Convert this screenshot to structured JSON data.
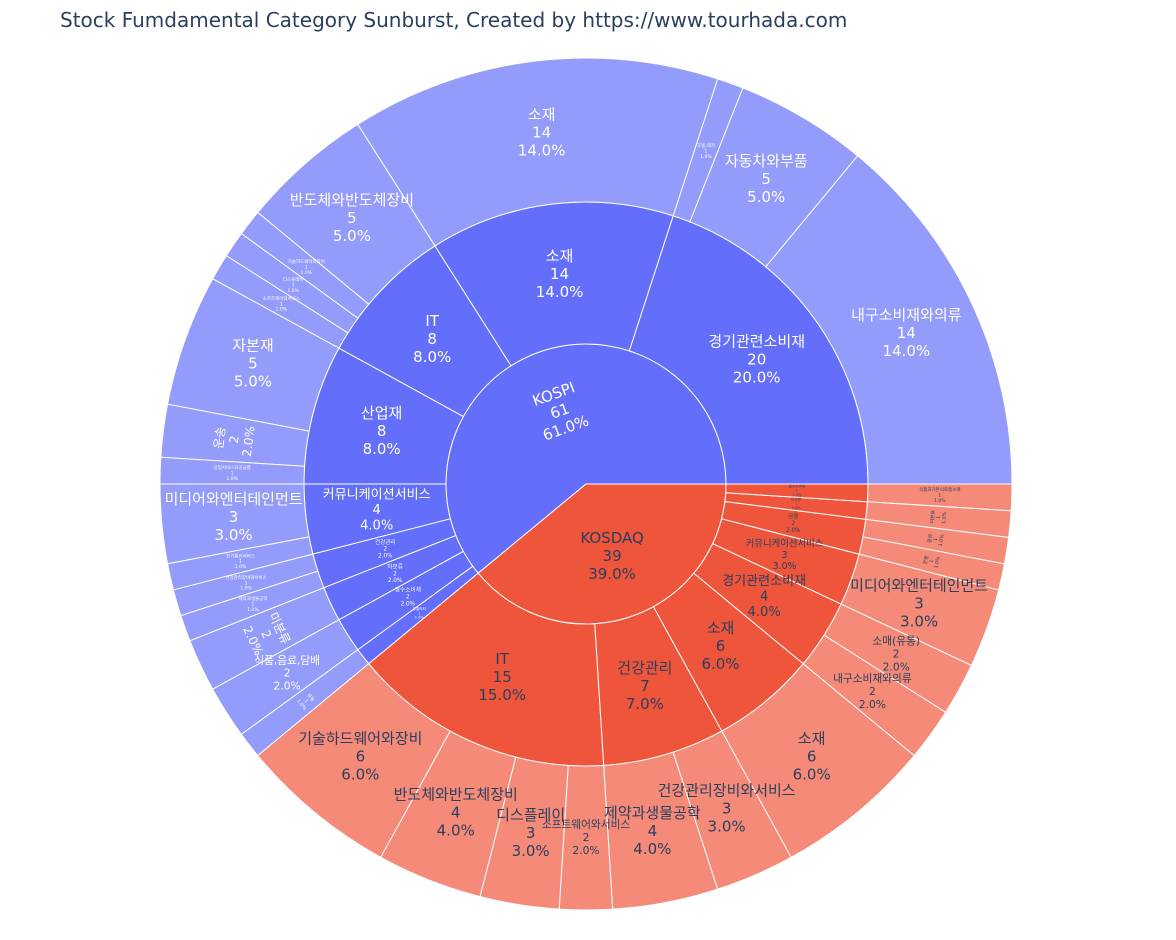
{
  "chart_data": {
    "type": "sunburst",
    "title": "Stock Fumdamental Category Sunburst, Created by https://www.tourhada.com",
    "colors": {
      "kospi_inner": "#636efa",
      "kospi_outer": "#939bfb",
      "kosdaq_inner": "#ef553b",
      "kosdaq_outer": "#f48a77",
      "label_dark": "#2a3f5f",
      "label_light": "#ffffff"
    },
    "roots": [
      {
        "name": "KOSPI",
        "value": 61,
        "percent": "61.0%",
        "children": [
          {
            "name": "경기관련소비재",
            "value": 20,
            "percent": "20.0%",
            "children": [
              {
                "name": "내구소비재와의류",
                "value": 14,
                "percent": "14.0%"
              },
              {
                "name": "자동차와부품",
                "value": 5,
                "percent": "5.0%"
              },
              {
                "name": "호텔,레저",
                "value": 1,
                "percent": "1.0%"
              }
            ]
          },
          {
            "name": "소재",
            "value": 14,
            "percent": "14.0%",
            "children": [
              {
                "name": "소재",
                "value": 14,
                "percent": "14.0%"
              }
            ]
          },
          {
            "name": "IT",
            "value": 8,
            "percent": "8.0%",
            "children": [
              {
                "name": "반도체와반도체장비",
                "value": 5,
                "percent": "5.0%"
              },
              {
                "name": "기술하드웨어와장비",
                "value": 1,
                "percent": "1.0%"
              },
              {
                "name": "디스플레이",
                "value": 1,
                "percent": "1.0%"
              },
              {
                "name": "소프트웨어와서비스",
                "value": 1,
                "percent": "1.0%"
              }
            ]
          },
          {
            "name": "산업재",
            "value": 8,
            "percent": "8.0%",
            "children": [
              {
                "name": "자본재",
                "value": 5,
                "percent": "5.0%"
              },
              {
                "name": "운송",
                "value": 2,
                "percent": "2.0%"
              },
              {
                "name": "상업서비스와공급품",
                "value": 1,
                "percent": "1.0%"
              }
            ]
          },
          {
            "name": "커뮤니케이션서비스",
            "value": 4,
            "percent": "4.0%",
            "children": [
              {
                "name": "미디어와엔터테인먼트",
                "value": 3,
                "percent": "3.0%"
              },
              {
                "name": "전기통신서비스",
                "value": 1,
                "percent": "1.0%"
              }
            ]
          },
          {
            "name": "건강관리",
            "value": 2,
            "percent": "2.0%",
            "children": [
              {
                "name": "건강관리장비와서비스",
                "value": 1,
                "percent": "1.0%"
              },
              {
                "name": "제약과생물공학",
                "value": 1,
                "percent": "1.0%"
              }
            ]
          },
          {
            "name": "미분류",
            "value": 2,
            "percent": "2.0%",
            "children": [
              {
                "name": "미분류",
                "value": 2,
                "percent": "2.0%"
              }
            ]
          },
          {
            "name": "필수소비재",
            "value": 2,
            "percent": "2.0%",
            "children": [
              {
                "name": "식품,음료,담배",
                "value": 2,
                "percent": "2.0%"
              }
            ]
          },
          {
            "name": "유틸리티",
            "value": 1,
            "percent": "1.0%",
            "children": [
              {
                "name": "유틸",
                "value": 1,
                "percent": "1.0%"
              }
            ]
          }
        ]
      },
      {
        "name": "KOSDAQ",
        "value": 39,
        "percent": "39.0%",
        "children": [
          {
            "name": "IT",
            "value": 15,
            "percent": "15.0%",
            "children": [
              {
                "name": "기술하드웨어와장비",
                "value": 6,
                "percent": "6.0%"
              },
              {
                "name": "반도체와반도체장비",
                "value": 4,
                "percent": "4.0%"
              },
              {
                "name": "디스플레이",
                "value": 3,
                "percent": "3.0%"
              },
              {
                "name": "소프트웨어와서비스",
                "value": 2,
                "percent": "2.0%"
              }
            ]
          },
          {
            "name": "건강관리",
            "value": 7,
            "percent": "7.0%",
            "children": [
              {
                "name": "제약과생물공학",
                "value": 4,
                "percent": "4.0%"
              },
              {
                "name": "건강관리장비와서비스",
                "value": 3,
                "percent": "3.0%"
              }
            ]
          },
          {
            "name": "소재",
            "value": 6,
            "percent": "6.0%",
            "children": [
              {
                "name": "소재",
                "value": 6,
                "percent": "6.0%"
              }
            ]
          },
          {
            "name": "경기관련소비재",
            "value": 4,
            "percent": "4.0%",
            "children": [
              {
                "name": "내구소비재와의류",
                "value": 2,
                "percent": "2.0%"
              },
              {
                "name": "소매(유통)",
                "value": 2,
                "percent": "2.0%"
              }
            ]
          },
          {
            "name": "커뮤니케이션서비스",
            "value": 3,
            "percent": "3.0%",
            "children": [
              {
                "name": "미디어와엔터테인먼트",
                "value": 3,
                "percent": "3.0%"
              }
            ]
          },
          {
            "name": "금융",
            "value": 2,
            "percent": "2.0%",
            "children": [
              {
                "name": "은행",
                "value": 1,
                "percent": "1.0%"
              },
              {
                "name": "증권",
                "value": 1,
                "percent": "1.0%"
              }
            ]
          },
          {
            "name": "미분류",
            "value": 1,
            "percent": "1.0%",
            "children": [
              {
                "name": "미분류",
                "value": 1,
                "percent": "1.0%"
              }
            ]
          },
          {
            "name": "필수소비재",
            "value": 1,
            "percent": "1.0%",
            "children": [
              {
                "name": "식품과기본식료품소매",
                "value": 1,
                "percent": "1.0%"
              }
            ]
          }
        ]
      }
    ]
  }
}
